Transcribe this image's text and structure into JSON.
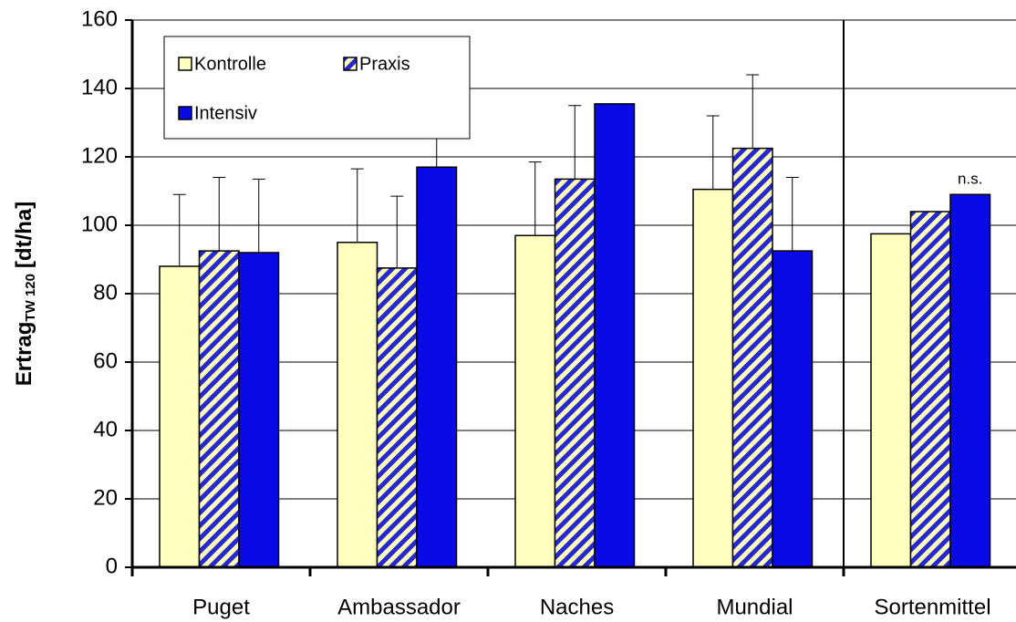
{
  "chart_data": {
    "type": "bar",
    "y_label": "Ertrag",
    "y_label_sub": "TW 120",
    "y_label_unit": "[dt/ha]",
    "categories": [
      "Puget",
      "Ambassador",
      "Naches",
      "Mundial",
      "Sortenmittel"
    ],
    "series": [
      {
        "name": "Kontrolle",
        "color": "#ffffc0",
        "values": [
          88,
          95,
          97,
          110.5,
          97.5
        ],
        "errors": [
          21,
          21.5,
          21.5,
          21.5,
          null
        ]
      },
      {
        "name": "Praxis",
        "color": "#2828d0",
        "hatch": true,
        "values": [
          92.5,
          87.5,
          113.5,
          122.5,
          104
        ],
        "errors": [
          21.5,
          21,
          21.5,
          21.5,
          null
        ]
      },
      {
        "name": "Intensiv",
        "color": "#0a0ae6",
        "values": [
          92,
          117,
          135.5,
          92.5,
          109
        ],
        "errors": [
          21.5,
          21,
          null,
          21.5,
          null
        ]
      }
    ],
    "annotations": [
      {
        "text": "n.s.",
        "category": 4,
        "series": 2
      }
    ],
    "separator_before_category": 4,
    "ylim": [
      0,
      160
    ],
    "yticks": [
      0,
      20,
      40,
      60,
      80,
      100,
      120,
      140,
      160
    ],
    "grid": true
  }
}
